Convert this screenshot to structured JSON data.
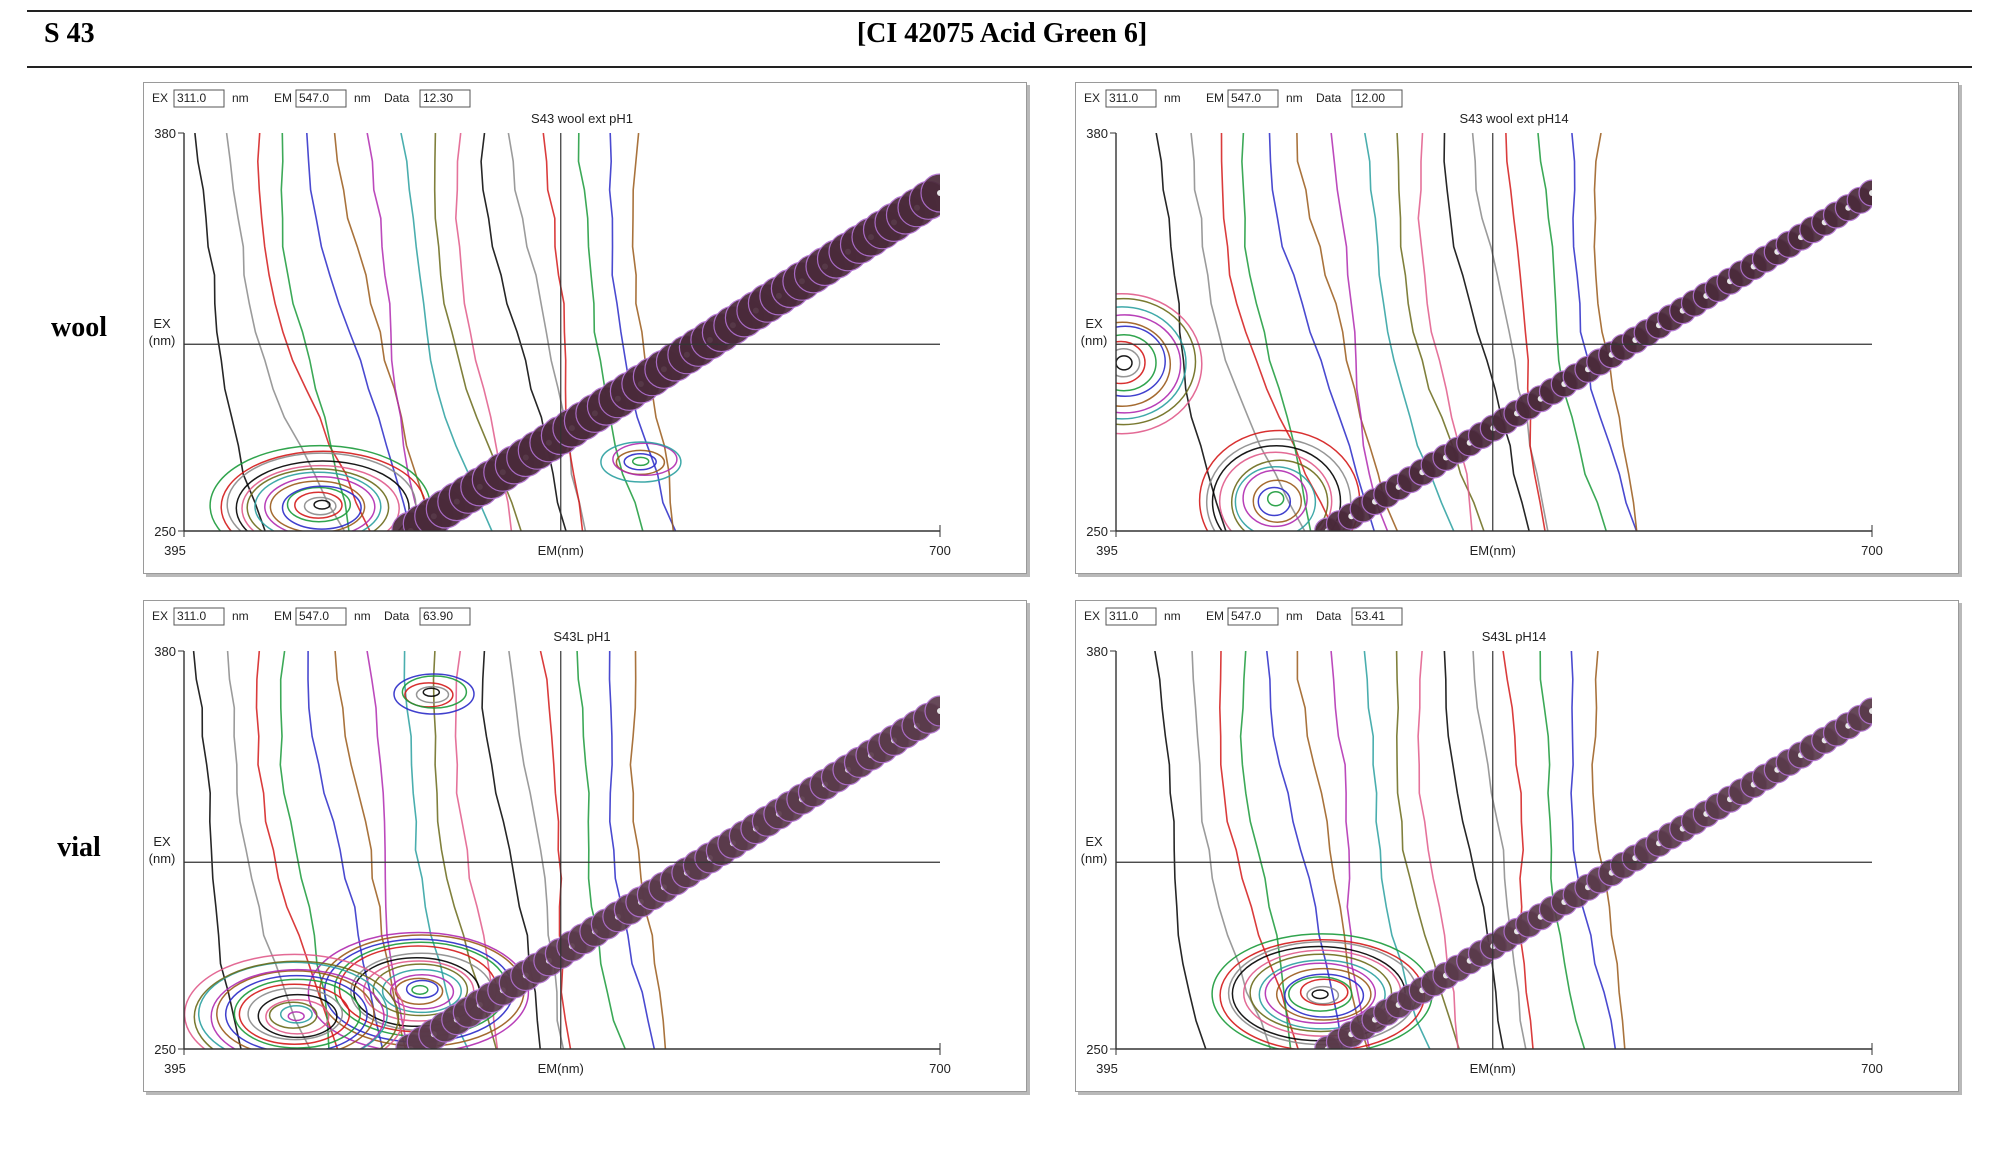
{
  "header": {
    "sample_id": "S 43",
    "title": "[CI 42075 Acid Green 6]"
  },
  "rows": [
    {
      "label": "wool"
    },
    {
      "label": "vial"
    }
  ],
  "panels": [
    {
      "ex_label": "EX",
      "ex_value": "311.0",
      "em_label": "EM",
      "em_value": "547.0",
      "unit": "nm",
      "data_label": "Data",
      "data_value": "12.30",
      "title": "S43 wool ext pH1",
      "chart_data": {
        "type": "contour",
        "title": "S43 wool ext pH1",
        "xlabel": "EM(nm)",
        "ylabel": "EX (nm)",
        "xlim": [
          395,
          700
        ],
        "ylim": [
          250,
          380
        ],
        "xticks": [
          "395",
          "700"
        ],
        "yticks": [
          "250",
          "380"
        ],
        "crosshair": {
          "em": 547.0,
          "ex": 311.0
        },
        "peaks": [
          {
            "em": 450,
            "ex": 258,
            "level": "high"
          },
          {
            "em": 580,
            "ex": 273,
            "level": "low"
          }
        ]
      }
    },
    {
      "ex_label": "EX",
      "ex_value": "311.0",
      "em_label": "EM",
      "em_value": "547.0",
      "unit": "nm",
      "data_label": "Data",
      "data_value": "12.00",
      "title": "S43 wool ext pH14",
      "chart_data": {
        "type": "contour",
        "title": "S43 wool ext pH14",
        "xlabel": "EM(nm)",
        "ylabel": "EX (nm)",
        "xlim": [
          395,
          700
        ],
        "ylim": [
          250,
          380
        ],
        "xticks": [
          "395",
          "700"
        ],
        "yticks": [
          "250",
          "380"
        ],
        "crosshair": {
          "em": 547.0,
          "ex": 311.0
        },
        "peaks": [
          {
            "em": 398,
            "ex": 305,
            "level": "medium"
          },
          {
            "em": 460,
            "ex": 260,
            "level": "medium"
          }
        ]
      }
    },
    {
      "ex_label": "EX",
      "ex_value": "311.0",
      "em_label": "EM",
      "em_value": "547.0",
      "unit": "nm",
      "data_label": "Data",
      "data_value": "63.90",
      "title": "S43L pH1",
      "chart_data": {
        "type": "contour",
        "title": "S43L pH1",
        "xlabel": "EM(nm)",
        "ylabel": "EX (nm)",
        "xlim": [
          395,
          700
        ],
        "ylim": [
          250,
          380
        ],
        "xticks": [
          "395",
          "700"
        ],
        "yticks": [
          "250",
          "380"
        ],
        "crosshair": {
          "em": 547.0,
          "ex": 311.0
        },
        "peaks": [
          {
            "em": 495,
            "ex": 366,
            "level": "low"
          },
          {
            "em": 490,
            "ex": 269,
            "level": "high"
          },
          {
            "em": 440,
            "ex": 261,
            "level": "high"
          }
        ]
      }
    },
    {
      "ex_label": "EX",
      "ex_value": "311.0",
      "em_label": "EM",
      "em_value": "547.0",
      "unit": "nm",
      "data_label": "Data",
      "data_value": "53.41",
      "title": "S43L pH14",
      "chart_data": {
        "type": "contour",
        "title": "S43L pH14",
        "xlabel": "EM(nm)",
        "ylabel": "EX (nm)",
        "xlim": [
          395,
          700
        ],
        "ylim": [
          250,
          380
        ],
        "xticks": [
          "395",
          "700"
        ],
        "yticks": [
          "250",
          "380"
        ],
        "crosshair": {
          "em": 547.0,
          "ex": 311.0
        },
        "peaks": [
          {
            "em": 478,
            "ex": 268,
            "level": "high"
          }
        ]
      }
    }
  ],
  "contour_palette": [
    "#000000",
    "#8a8a8a",
    "#d41a1a",
    "#1a9a3a",
    "#2a2ac8",
    "#9a5a1a",
    "#b02ab0",
    "#2aa0a0",
    "#6a6a1a",
    "#e05a8a"
  ]
}
